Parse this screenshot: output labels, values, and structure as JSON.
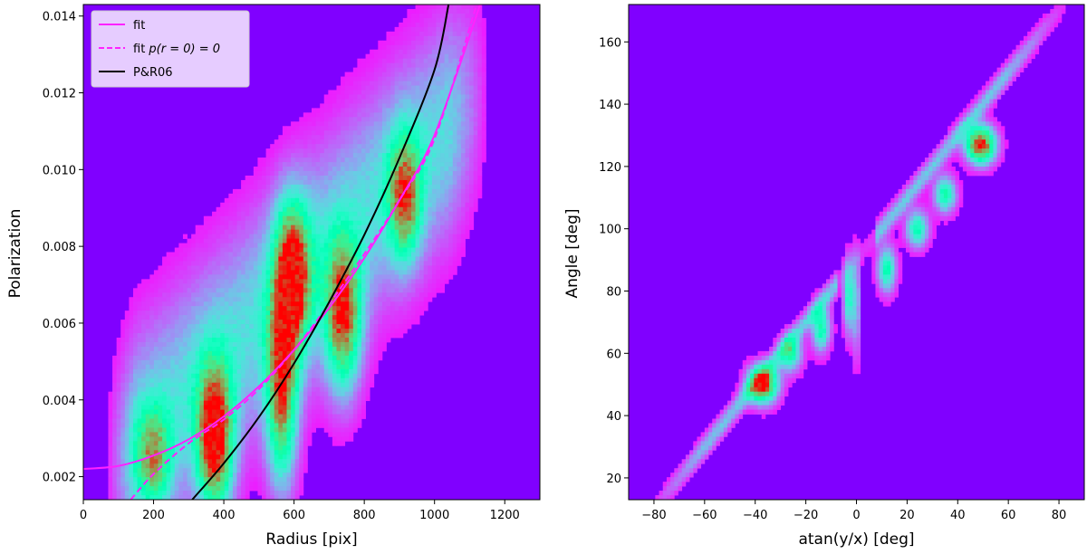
{
  "chart_data": [
    {
      "type": "heatmap",
      "xlabel": "Radius [pix]",
      "ylabel": "Polarization",
      "xlim": [
        0,
        1300
      ],
      "ylim": [
        0.0014,
        0.0143
      ],
      "xticks": [
        0,
        200,
        400,
        600,
        800,
        1000,
        1200
      ],
      "xtick_labels": [
        "0",
        "200",
        "400",
        "600",
        "800",
        "1000",
        "1200"
      ],
      "yticks": [
        0.002,
        0.004,
        0.006,
        0.008,
        0.01,
        0.012,
        0.014
      ],
      "ytick_labels": [
        "0.002",
        "0.004",
        "0.006",
        "0.008",
        "0.010",
        "0.012",
        "0.014"
      ],
      "colormap": "rainbow",
      "background_color": "#8000ff",
      "density_blobs": [
        {
          "x": 200,
          "y": 0.0025,
          "sx": 35,
          "sy": 0.0009,
          "w": 0.55
        },
        {
          "x": 375,
          "y": 0.003,
          "sx": 35,
          "sy": 0.0013,
          "w": 1.0
        },
        {
          "x": 565,
          "y": 0.0042,
          "sx": 30,
          "sy": 0.0016,
          "w": 0.8
        },
        {
          "x": 595,
          "y": 0.0072,
          "sx": 35,
          "sy": 0.0013,
          "w": 0.95
        },
        {
          "x": 740,
          "y": 0.0062,
          "sx": 35,
          "sy": 0.0013,
          "w": 0.85
        },
        {
          "x": 915,
          "y": 0.0093,
          "sx": 32,
          "sy": 0.0011,
          "w": 0.7
        }
      ],
      "legend": {
        "location": "upper left",
        "entries": [
          {
            "label": "fit",
            "color": "#ff22ff",
            "dash": "solid"
          },
          {
            "label": "fit ",
            "label_math": "p(r = 0) = 0",
            "color": "#ff22ff",
            "dash": "dashed"
          },
          {
            "label": "P&R06",
            "color": "#000000",
            "dash": "solid"
          }
        ]
      },
      "series": [
        {
          "name": "fit",
          "color": "#ff22ff",
          "dash": "solid",
          "x": [
            0,
            100,
            200,
            300,
            400,
            500,
            600,
            700,
            800,
            900,
            1000,
            1130
          ],
          "y": [
            0.0022,
            0.00228,
            0.00255,
            0.00297,
            0.00357,
            0.00435,
            0.0053,
            0.0064,
            0.0077,
            0.0092,
            0.0109,
            0.0143
          ]
        },
        {
          "name": "fit p(r = 0) = 0",
          "color": "#ff22ff",
          "dash": "dashed",
          "x": [
            135,
            200,
            300,
            400,
            500,
            600,
            700,
            800,
            900,
            1000,
            1120
          ],
          "y": [
            0.0014,
            0.00207,
            0.00287,
            0.00349,
            0.00428,
            0.0053,
            0.0065,
            0.0078,
            0.0092,
            0.0108,
            0.0143
          ]
        },
        {
          "name": "P&R06",
          "color": "#000000",
          "dash": "solid",
          "x": [
            310,
            400,
            500,
            600,
            700,
            800,
            900,
            1000,
            1040
          ],
          "y": [
            0.0014,
            0.00235,
            0.00355,
            0.00495,
            0.00655,
            0.0083,
            0.0103,
            0.0126,
            0.0143
          ]
        }
      ]
    },
    {
      "type": "heatmap",
      "xlabel": "atan(y/x) [deg]",
      "ylabel": "Angle [deg]",
      "xlim": [
        -90,
        90
      ],
      "ylim": [
        13,
        172
      ],
      "xticks": [
        -80,
        -60,
        -40,
        -20,
        0,
        20,
        40,
        60,
        80
      ],
      "xtick_labels": [
        "−80",
        "−60",
        "−40",
        "−20",
        "0",
        "20",
        "40",
        "60",
        "80"
      ],
      "yticks": [
        20,
        40,
        60,
        80,
        100,
        120,
        140,
        160
      ],
      "ytick_labels": [
        "20",
        "40",
        "60",
        "80",
        "100",
        "120",
        "140",
        "160"
      ],
      "colormap": "rainbow",
      "background_color": "#8000ff",
      "band": {
        "slope": 1.0,
        "intercept": 90,
        "x_range": [
          -88,
          88
        ]
      },
      "density_blobs": [
        {
          "x": -37,
          "y": 50,
          "sx": 4,
          "sy": 4,
          "w": 0.95
        },
        {
          "x": -26,
          "y": 60,
          "sx": 3,
          "sy": 4,
          "w": 0.5
        },
        {
          "x": -14,
          "y": 68,
          "sx": 2.5,
          "sy": 5,
          "w": 0.5
        },
        {
          "x": -3,
          "y": 78,
          "sx": 1.5,
          "sy": 8,
          "w": 0.45
        },
        {
          "x": 0,
          "y": 75,
          "sx": 1.0,
          "sy": 12,
          "w": 0.25
        },
        {
          "x": 12,
          "y": 87,
          "sx": 2.5,
          "sy": 5,
          "w": 0.5
        },
        {
          "x": 24,
          "y": 100,
          "sx": 3,
          "sy": 4,
          "w": 0.5
        },
        {
          "x": 35,
          "y": 111,
          "sx": 3,
          "sy": 4,
          "w": 0.5
        },
        {
          "x": 49,
          "y": 127,
          "sx": 4,
          "sy": 4,
          "w": 1.0
        }
      ]
    }
  ]
}
